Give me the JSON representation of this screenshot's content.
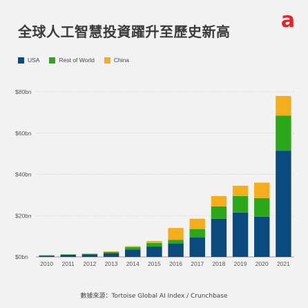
{
  "title": "全球人工智慧投資躍升至歷史新高",
  "source": "數據來源：Tortoise Global AI Index / Crunchbase",
  "logo": {
    "icon": "a-logo-icon",
    "letter": "a",
    "color": "#e3252b"
  },
  "legend": [
    {
      "label": "USA",
      "color": "#0a4a7c"
    },
    {
      "label": "Rest of World",
      "color": "#2aa81a"
    },
    {
      "label": "China",
      "color": "#f5ae1b"
    }
  ],
  "chart_data": {
    "type": "bar",
    "stacked": true,
    "categories": [
      "2010",
      "2011",
      "2012",
      "2013",
      "2014",
      "2015",
      "2016",
      "2017",
      "2018",
      "2019",
      "2020",
      "2021"
    ],
    "series": [
      {
        "name": "USA",
        "color": "#0a4a7c",
        "values": [
          0.6,
          1.0,
          1.2,
          1.8,
          3.5,
          5.0,
          6.5,
          9.5,
          18.5,
          21.5,
          19.5,
          51.5
        ]
      },
      {
        "name": "Rest of World",
        "color": "#2aa81a",
        "values": [
          0.2,
          0.2,
          0.3,
          0.6,
          1.2,
          1.7,
          1.8,
          4.0,
          6.0,
          8.0,
          9.0,
          17.0
        ]
      },
      {
        "name": "China",
        "color": "#f5ae1b",
        "values": [
          0.0,
          0.0,
          0.0,
          0.3,
          0.5,
          1.0,
          5.7,
          5.0,
          5.0,
          5.0,
          7.5,
          9.5
        ]
      }
    ],
    "yticks": [
      0,
      20,
      40,
      60,
      80
    ],
    "ytick_labels": [
      "$0bn",
      "$20bn",
      "$40bn",
      "$60bn",
      "$80bn"
    ],
    "ylim": [
      0,
      80
    ],
    "grid": true
  }
}
